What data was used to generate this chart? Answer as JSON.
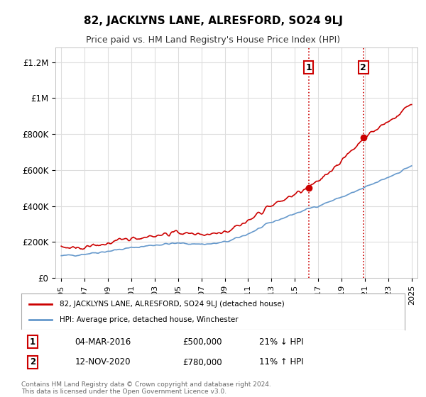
{
  "title": "82, JACKLYNS LANE, ALRESFORD, SO24 9LJ",
  "subtitle": "Price paid vs. HM Land Registry's House Price Index (HPI)",
  "xlabel": "",
  "ylabel": "",
  "ylim": [
    0,
    1300000
  ],
  "yticks": [
    0,
    200000,
    400000,
    600000,
    800000,
    1000000,
    1200000
  ],
  "ytick_labels": [
    "£0",
    "£200K",
    "£400K",
    "£600K",
    "£800K",
    "£1M",
    "£1.2M"
  ],
  "hpi_color": "#6699cc",
  "price_color": "#cc0000",
  "marker1_date_idx": 253,
  "marker2_date_idx": 301,
  "marker1_label": "1",
  "marker2_label": "2",
  "legend_line1": "82, JACKLYNS LANE, ALRESFORD, SO24 9LJ (detached house)",
  "legend_line2": "HPI: Average price, detached house, Winchester",
  "table_row1": [
    "1",
    "04-MAR-2016",
    "£500,000",
    "21% ↓ HPI"
  ],
  "table_row2": [
    "2",
    "12-NOV-2020",
    "£780,000",
    "11% ↑ HPI"
  ],
  "footer": "Contains HM Land Registry data © Crown copyright and database right 2024.\nThis data is licensed under the Open Government Licence v3.0.",
  "vline_color": "#cc0000",
  "vline_style": ":",
  "background_color": "#ffffff",
  "grid_color": "#dddddd"
}
